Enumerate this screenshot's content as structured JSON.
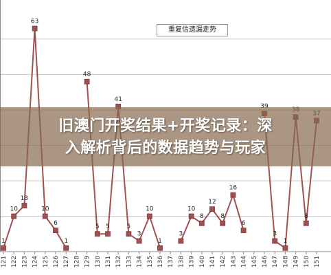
{
  "banner": {
    "line1": "旧澳门开奖结果+开奖记录：深",
    "line2": "入解析背后的数据趋势与玩家"
  },
  "chart_data": {
    "type": "line",
    "title": "",
    "legend": "重复信遗漏走势",
    "legend_position": "top-right",
    "xlabel": "",
    "ylabel": "",
    "ylim": [
      0,
      66
    ],
    "grid": true,
    "colors": {
      "line": "#a05050",
      "marker": "#a05050",
      "grid": "#c8c8c8",
      "label": "#222222"
    },
    "categories": [
      "121",
      "122",
      "123",
      "124",
      "125",
      "126",
      "127",
      "128",
      "129",
      "130",
      "131",
      "132",
      "133",
      "134",
      "135",
      "136",
      "137",
      "138",
      "139",
      "140",
      "141",
      "142",
      "143",
      "144",
      "145",
      "146",
      "147",
      "148",
      "149",
      "150",
      "151"
    ],
    "series": [
      {
        "values": [
          1,
          10,
          13,
          63,
          10,
          6,
          1,
          null,
          48,
          5,
          5,
          41,
          5,
          3,
          10,
          1,
          null,
          3,
          10,
          8,
          12,
          8,
          16,
          6,
          null,
          39,
          3,
          1,
          38,
          8,
          37
        ]
      }
    ],
    "data_labels": [
      "1",
      "10",
      "13",
      "63",
      "10",
      "6",
      "1",
      "",
      "48",
      "5",
      "5",
      "41",
      "5",
      "3",
      "10",
      "1",
      "",
      "3",
      "10",
      "8",
      "12",
      "8",
      "16",
      "6",
      "",
      "39",
      "3",
      "1",
      "38",
      "8",
      "37"
    ]
  }
}
